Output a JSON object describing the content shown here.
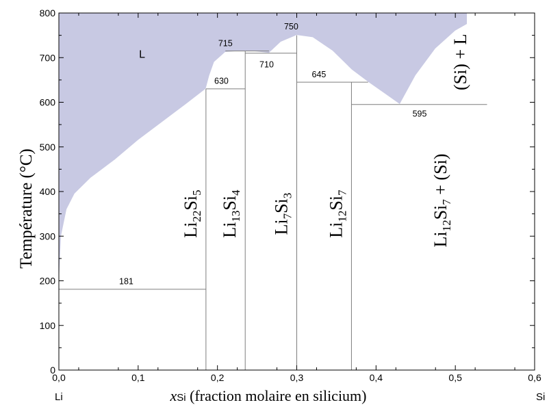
{
  "chart_data": {
    "type": "area",
    "ylabel": "Température (°C)",
    "xlabel": {
      "var": "x",
      "sub": "Si",
      "rest": " (fraction molaire en silicium)"
    },
    "xlim": [
      0,
      0.6
    ],
    "ylim": [
      0,
      800
    ],
    "x_ticks": [
      "0,0",
      "0,1",
      "0,2",
      "0,3",
      "0,4",
      "0,5",
      "0,6"
    ],
    "x_tick_values": [
      0,
      0.1,
      0.2,
      0.3,
      0.4,
      0.5,
      0.6
    ],
    "y_ticks": [
      "0",
      "100",
      "200",
      "300",
      "400",
      "500",
      "600",
      "700",
      "800"
    ],
    "y_tick_values": [
      0,
      100,
      200,
      300,
      400,
      500,
      600,
      700,
      800
    ],
    "end_labels": {
      "left": "Li",
      "right": "Si"
    },
    "liquidus": [
      [
        0,
        181
      ],
      [
        0.003,
        300
      ],
      [
        0.01,
        360
      ],
      [
        0.02,
        395
      ],
      [
        0.04,
        430
      ],
      [
        0.07,
        470
      ],
      [
        0.1,
        515
      ],
      [
        0.13,
        555
      ],
      [
        0.16,
        595
      ],
      [
        0.1855,
        630
      ],
      [
        0.19,
        660
      ],
      [
        0.196,
        690
      ],
      [
        0.21,
        712
      ],
      [
        0.235,
        715
      ],
      [
        0.25,
        713
      ],
      [
        0.265,
        710
      ],
      [
        0.28,
        735
      ],
      [
        0.3,
        750
      ],
      [
        0.32,
        745
      ],
      [
        0.345,
        715
      ],
      [
        0.369,
        673
      ],
      [
        0.39,
        645
      ],
      [
        0.41,
        620
      ],
      [
        0.43,
        595
      ],
      [
        0.45,
        660
      ],
      [
        0.475,
        720
      ],
      [
        0.5,
        760
      ],
      [
        0.515,
        775
      ],
      [
        0.515,
        800
      ]
    ],
    "liquid_color": "#c8c9e3",
    "compounds": [
      {
        "x": 0.1855,
        "top": 630,
        "formula": [
          [
            "Li",
            ""
          ],
          [
            "22",
            "sub"
          ],
          [
            "Si",
            ""
          ],
          [
            "5",
            "sub"
          ]
        ]
      },
      {
        "x": 0.235,
        "top": 715,
        "formula": [
          [
            "Li",
            ""
          ],
          [
            "13",
            "sub"
          ],
          [
            "Si",
            ""
          ],
          [
            "4",
            "sub"
          ]
        ]
      },
      {
        "x": 0.3,
        "top": 750,
        "formula": [
          [
            "Li",
            ""
          ],
          [
            "7",
            "sub"
          ],
          [
            "Si",
            ""
          ],
          [
            "3",
            "sub"
          ]
        ]
      },
      {
        "x": 0.369,
        "top": 645,
        "formula": [
          [
            "Li",
            ""
          ],
          [
            "12",
            "sub"
          ],
          [
            "Si",
            ""
          ],
          [
            "7",
            "sub"
          ]
        ]
      }
    ],
    "isotherms": [
      {
        "y": 181,
        "x1": 0,
        "x2": 0.1855,
        "label": "181",
        "lx": 0.085,
        "ly": 192
      },
      {
        "y": 630,
        "x1": 0.1855,
        "x2": 0.235,
        "label": "630",
        "lx": 0.205,
        "ly": 641
      },
      {
        "y": 715,
        "x1": 0.21,
        "x2": 0.265,
        "label": "715",
        "lx": 0.21,
        "ly": 726
      },
      {
        "y": 710,
        "x1": 0.235,
        "x2": 0.3,
        "label": "710",
        "lx": 0.262,
        "ly": 678
      },
      {
        "y": 645,
        "x1": 0.3,
        "x2": 0.39,
        "label": "645",
        "lx": 0.328,
        "ly": 656
      },
      {
        "y": 595,
        "x1": 0.369,
        "x2": 0.54,
        "label": "595",
        "lx": 0.455,
        "ly": 568
      }
    ],
    "peak_label": {
      "label": "750",
      "x": 0.293,
      "y": 763
    },
    "region_labels": [
      {
        "text": "L",
        "x": 0.105,
        "y": 700
      }
    ],
    "vertical_labels": [
      {
        "parts": [
          [
            "(Si) + L",
            ""
          ]
        ],
        "x": 0.505,
        "y": 690
      },
      {
        "parts": [
          [
            "Li",
            ""
          ],
          [
            "12",
            "sub"
          ],
          [
            "Si",
            ""
          ],
          [
            "7",
            "sub"
          ],
          [
            " + (Si)",
            ""
          ]
        ],
        "x": 0.48,
        "y": 380
      }
    ],
    "grid": false
  }
}
